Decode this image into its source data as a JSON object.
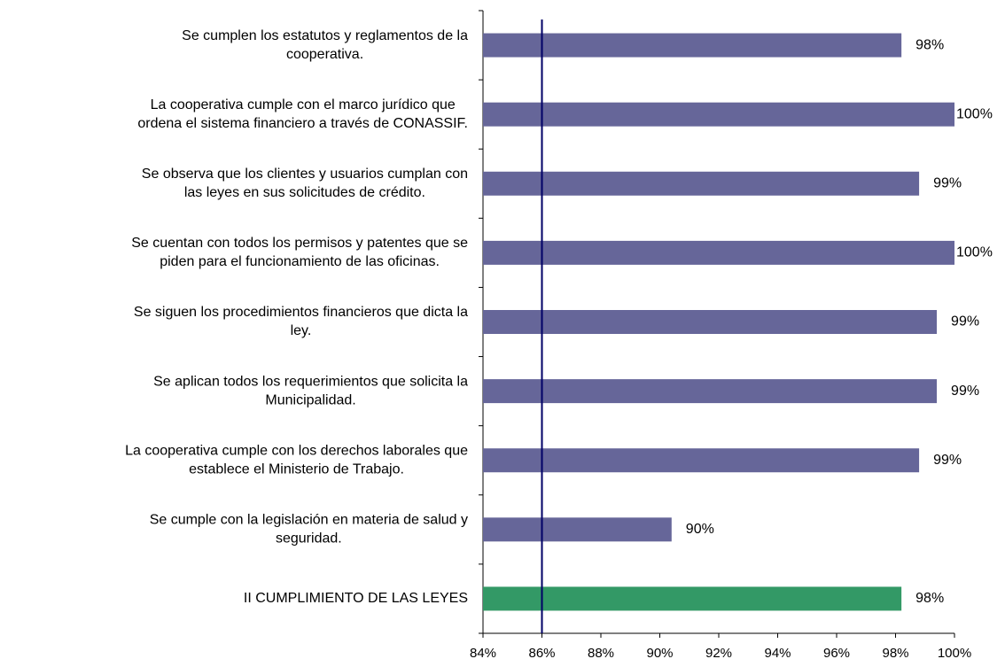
{
  "chart_data": {
    "type": "hbar",
    "categories": [
      [
        "Se cumplen los estatutos y reglamentos de la",
        "cooperativa."
      ],
      [
        "La cooperativa cumple con el marco jurídico que",
        "ordena el sistema financiero a través de CONASSIF."
      ],
      [
        "Se observa que los clientes  y usuarios cumplan con",
        "las leyes en sus solicitudes de crédito."
      ],
      [
        "Se cuentan con todos los permisos y patentes que se",
        "piden para el funcionamiento de las oficinas."
      ],
      [
        "Se siguen los procedimientos financieros que dicta la",
        "ley."
      ],
      [
        "Se aplican todos los requerimientos que solicita la",
        "Municipalidad."
      ],
      [
        "La cooperativa cumple con los derechos laborales que",
        "establece el Ministerio de Trabajo."
      ],
      [
        "Se cumple con la legislación en materia de salud y",
        "seguridad."
      ],
      [
        "II CUMPLIMIENTO DE LAS LEYES"
      ]
    ],
    "values": [
      98.2,
      100,
      98.8,
      100,
      99.4,
      99.4,
      98.8,
      90.4,
      98.2
    ],
    "value_labels": [
      "98%",
      "100%",
      "99%",
      "100%",
      "99%",
      "99%",
      "99%",
      "90%",
      "98%"
    ],
    "colors": [
      "#666699",
      "#666699",
      "#666699",
      "#666699",
      "#666699",
      "#666699",
      "#666699",
      "#666699",
      "#339966"
    ],
    "xlim": [
      84,
      100
    ],
    "xticks": [
      {
        "value": 84,
        "label": "84%"
      },
      {
        "value": 86,
        "label": "86%"
      },
      {
        "value": 88,
        "label": "88%"
      },
      {
        "value": 90,
        "label": "90%"
      },
      {
        "value": 92,
        "label": "92%"
      },
      {
        "value": 94,
        "label": "94%"
      },
      {
        "value": 96,
        "label": "96%"
      },
      {
        "value": 98,
        "label": "98%"
      },
      {
        "value": 100,
        "label": "100%"
      }
    ],
    "reference_line": 86,
    "reference_color": "#000066"
  }
}
